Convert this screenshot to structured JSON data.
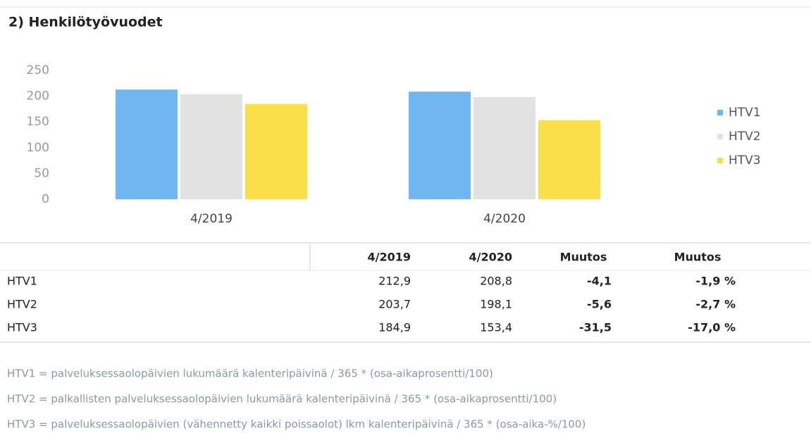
{
  "title": "2) Henkilötyövuodet",
  "chart_data": {
    "type": "bar",
    "categories": [
      "4/2019",
      "4/2020"
    ],
    "series": [
      {
        "name": "HTV1",
        "color": "#6fb6f2",
        "values": [
          212.9,
          208.8
        ]
      },
      {
        "name": "HTV2",
        "color": "#e2e2e2",
        "values": [
          203.7,
          198.1
        ]
      },
      {
        "name": "HTV3",
        "color": "#fbdf4a",
        "values": [
          184.9,
          153.4
        ]
      }
    ],
    "ylim": [
      0,
      250
    ],
    "yticks": [
      0,
      50,
      100,
      150,
      200,
      250
    ],
    "grid": false,
    "legend": "right"
  },
  "table": {
    "header": [
      "4/2019",
      "4/2020",
      "Muutos",
      "Muutos"
    ],
    "rows": [
      [
        "HTV1",
        "212,9",
        "208,8",
        "-4,1",
        "-1,9 %"
      ],
      [
        "HTV2",
        "203,7",
        "198,1",
        "-5,6",
        "-2,7 %"
      ],
      [
        "HTV3",
        "184,9",
        "153,4",
        "-31,5",
        "-17,0 %"
      ]
    ]
  },
  "notes": [
    "HTV1 = palveluksessaolopäivien lukumäärä kalenteripäivinä / 365 * (osa-aikaprosentti/100)",
    "HTV2 = palkallisten palveluksessaolopäivien lukumäärä kalenteripäivinä / 365 * (osa-aikaprosentti/100)",
    "HTV3 = palveluksessaolopäivien (vähennetty kaikki poissaolot) lkm kalenteripäivinä / 365 * (osa-aika-%/100)"
  ]
}
